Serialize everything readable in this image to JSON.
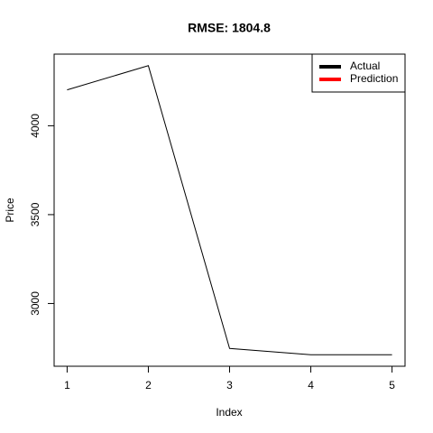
{
  "chart_data": {
    "type": "line",
    "title": "RMSE: 1804.8",
    "xlabel": "Index",
    "ylabel": "Price",
    "x": [
      1,
      2,
      3,
      4,
      5
    ],
    "series": [
      {
        "name": "Actual",
        "color": "#000000",
        "values": [
          4202,
          4338,
          2747,
          2712,
          2712
        ]
      },
      {
        "name": "Prediction",
        "color": "#ff0000",
        "values": [
          null,
          null,
          null,
          null,
          null
        ]
      }
    ],
    "xlim": [
      0.84,
      5.16
    ],
    "xticks": [
      1,
      2,
      3,
      4,
      5
    ],
    "ylim": [
      2647,
      4403
    ],
    "yticks": [
      3000,
      3500,
      4000
    ],
    "legend": "top-right"
  }
}
